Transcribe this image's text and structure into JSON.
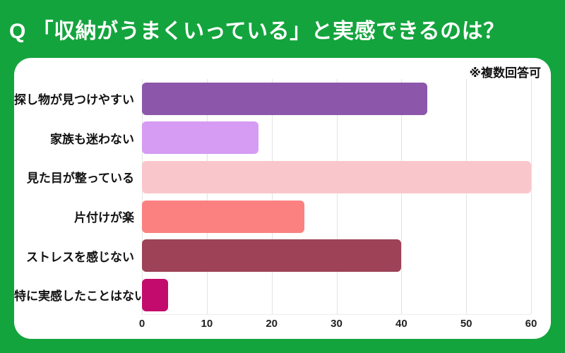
{
  "page": {
    "title": "Q 「収納がうまくいっている」と実感できるのは？",
    "background_color": "#14A43D"
  },
  "card": {
    "note": "※複数回答可"
  },
  "chart_data": {
    "type": "bar",
    "orientation": "horizontal",
    "title": "Q 「収納がうまくいっている」と実感できるのは？",
    "annotation": "※複数回答可",
    "categories": [
      "探し物が見つけやすい",
      "家族も迷わない",
      "見た目が整っている",
      "片付けが楽",
      "ストレスを感じない",
      "特に実感したことはない"
    ],
    "values": [
      44,
      18,
      60,
      25,
      40,
      4
    ],
    "bar_colors": [
      "#8C57AB",
      "#D69BF2",
      "#F9C6CB",
      "#FB8181",
      "#9D4257",
      "#C30B6D"
    ],
    "xlabel": "",
    "ylabel": "",
    "xlim": [
      0,
      60
    ],
    "xticks": [
      0,
      10,
      20,
      30,
      40,
      50,
      60
    ],
    "grid": true,
    "legend": false
  }
}
